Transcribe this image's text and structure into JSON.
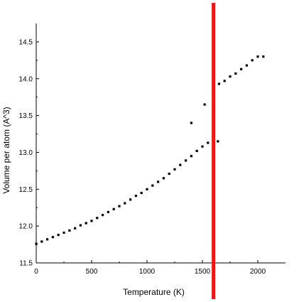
{
  "chart_data": {
    "type": "scatter",
    "title": "",
    "xlabel": "Temperature (K)",
    "ylabel": "Volume per atom (A^3)",
    "xlim": [
      0,
      2250
    ],
    "ylim": [
      11.5,
      14.75
    ],
    "x_ticks": [
      0,
      500,
      1000,
      1500,
      2000
    ],
    "y_ticks": [
      11.5,
      12.0,
      12.5,
      13.0,
      13.5,
      14.0,
      14.5
    ],
    "x_tick_labels": [
      "0",
      "500",
      "1000",
      "1500",
      "2000"
    ],
    "y_tick_labels": [
      "11.5",
      "12.0",
      "12.5",
      "13.0",
      "13.5",
      "14.0",
      "14.5"
    ],
    "grid": false,
    "marker_color": "#000000",
    "reference_line": {
      "orientation": "vertical",
      "x": 1600,
      "color": "#e31a1c"
    },
    "series": [
      {
        "points": [
          [
            0,
            11.76
          ],
          [
            50,
            11.79
          ],
          [
            100,
            11.82
          ],
          [
            150,
            11.85
          ],
          [
            200,
            11.88
          ],
          [
            250,
            11.91
          ],
          [
            300,
            11.94
          ],
          [
            350,
            11.97
          ],
          [
            400,
            12.01
          ],
          [
            450,
            12.04
          ],
          [
            500,
            12.07
          ],
          [
            550,
            12.11
          ],
          [
            600,
            12.15
          ],
          [
            650,
            12.19
          ],
          [
            700,
            12.23
          ],
          [
            750,
            12.27
          ],
          [
            800,
            12.31
          ],
          [
            850,
            12.36
          ],
          [
            900,
            12.41
          ],
          [
            950,
            12.45
          ],
          [
            1000,
            12.5
          ],
          [
            1050,
            12.55
          ],
          [
            1100,
            12.6
          ],
          [
            1150,
            12.65
          ],
          [
            1200,
            12.71
          ],
          [
            1250,
            12.77
          ],
          [
            1300,
            12.83
          ],
          [
            1350,
            12.89
          ],
          [
            1400,
            12.95
          ],
          [
            1450,
            13.02
          ],
          [
            1500,
            13.08
          ],
          [
            1550,
            13.13
          ],
          [
            1600,
            13.17
          ],
          [
            1640,
            13.15
          ],
          [
            1400,
            13.4
          ],
          [
            1520,
            13.65
          ],
          [
            1600,
            13.9
          ],
          [
            1650,
            13.93
          ],
          [
            1700,
            13.97
          ],
          [
            1750,
            14.03
          ],
          [
            1800,
            14.07
          ],
          [
            1850,
            14.13
          ],
          [
            1900,
            14.18
          ],
          [
            1950,
            14.25
          ],
          [
            2000,
            14.3
          ],
          [
            2050,
            14.3
          ]
        ]
      }
    ]
  }
}
